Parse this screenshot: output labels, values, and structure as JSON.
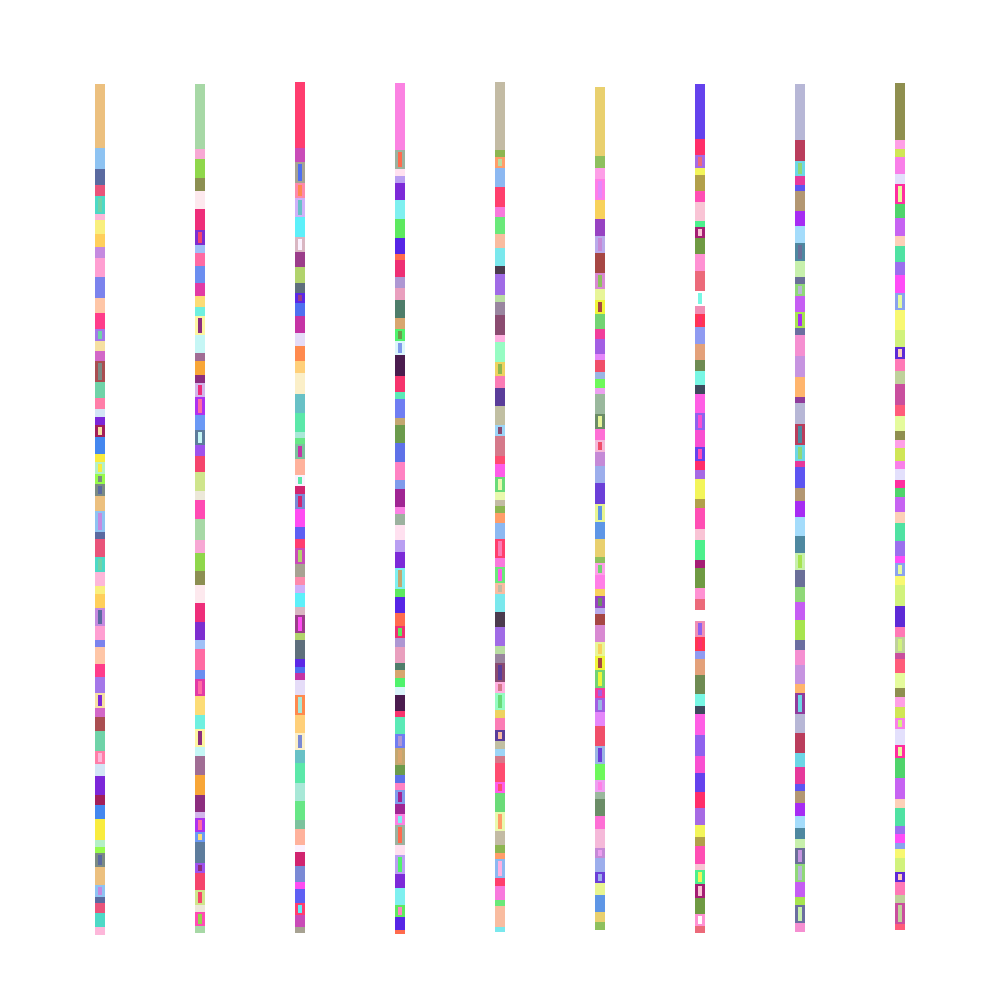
{
  "strips": [
    {
      "palette": [
        "#ecc07f",
        "#8ec3f2",
        "#5a6aa0",
        "#e9547a",
        "#4dd9c6",
        "#fdb7da",
        "#f9ef7e",
        "#ffcf5b",
        "#c58ae0",
        "#ff9fd2",
        "#7b83ed",
        "#fec6a7",
        "#ff3d8a",
        "#a477e9",
        "#f6e0a2",
        "#d267c8",
        "#aa4e51",
        "#6fd3a8",
        "#ff7ea8",
        "#d3e5f5",
        "#7c27d9",
        "#a21f59",
        "#4487ef",
        "#f9ec3e",
        "#b4f0c6",
        "#97fb4c",
        "#7b8b84"
      ]
    },
    {
      "palette": [
        "#a7d8a6",
        "#f7a8d4",
        "#8fd74b",
        "#8c8f52",
        "#fde9ee",
        "#ee2e7a",
        "#7d2ed0",
        "#a0c0f7",
        "#ff6ba3",
        "#6b8ef0",
        "#e13ba6",
        "#fcdc76",
        "#6ff0e0",
        "#fdf5a0",
        "#c5f6f5",
        "#a06d94",
        "#f8a637",
        "#8c2d7e",
        "#d2b5ea",
        "#ad31f0",
        "#6a99f5",
        "#5d7c9c",
        "#9e52ec",
        "#f5456c",
        "#cfe58c",
        "#ece8d9",
        "#ff4ab3"
      ]
    },
    {
      "palette": [
        "#ff3d6f",
        "#c94bb8",
        "#a7a292",
        "#fd8aac",
        "#ceb1f9",
        "#5cf0fa",
        "#d9b6c2",
        "#9b3d8a",
        "#b1d36c",
        "#5e6f7c",
        "#5b28e6",
        "#4e6ff0",
        "#c533a5",
        "#e5dcf8",
        "#ff8a4e",
        "#ffd07a",
        "#fbefc8",
        "#68c1c6",
        "#5be8a9",
        "#a8e8d7",
        "#67e786",
        "#7cc29d",
        "#ffb29c",
        "#fbf1fe",
        "#d1246f",
        "#7a89d5",
        "#ff4cf2",
        "#5e5ff3"
      ]
    },
    {
      "palette": [
        "#fb82e2",
        "#9cb29f",
        "#ffe1f0",
        "#b99ff2",
        "#7c2ad8",
        "#7ef0f0",
        "#5de95f",
        "#5625e6",
        "#ff6b4e",
        "#ee2f74",
        "#ae97d3",
        "#e99fbe",
        "#4e7d6a",
        "#d8a66e",
        "#4ff36c",
        "#dbf5fb",
        "#4a1c4e",
        "#f6346d",
        "#5aeab6",
        "#6f7df2",
        "#c3a770",
        "#6b9b4c",
        "#5e71e8",
        "#ff82c3",
        "#7f9beb",
        "#a02593"
      ]
    },
    {
      "palette": [
        "#c3bba4",
        "#8db651",
        "#ff9d69",
        "#8cb8f1",
        "#ff3f6d",
        "#f879dd",
        "#6ae97a",
        "#f9bca0",
        "#7ae8ed",
        "#4b3b4e",
        "#a06be6",
        "#b9dda2",
        "#99859f",
        "#8a4b70",
        "#ffb0e0",
        "#96fcc3",
        "#eed260",
        "#fb7cb5",
        "#5a3d9a",
        "#c1bfa2",
        "#9cd5f7",
        "#d5798a",
        "#ff4c70",
        "#fe5ce9",
        "#6adb78",
        "#e9f9ad"
      ]
    },
    {
      "palette": [
        "#e9d06f",
        "#8ec05e",
        "#fd9ee7",
        "#ff7ee7",
        "#f8d25c",
        "#9742c2",
        "#b9aaea",
        "#a64744",
        "#d889d2",
        "#e8f598",
        "#eff53a",
        "#72d372",
        "#f13d9b",
        "#a25ee3",
        "#e586fa",
        "#f04e69",
        "#9ab5e4",
        "#6ef85b",
        "#ec9ff0",
        "#9ab89d",
        "#6b8d67",
        "#fe6fd5",
        "#f5b9d9",
        "#c58ad7",
        "#9caeec",
        "#6b3fd8",
        "#e8f591",
        "#5e96e6"
      ]
    },
    {
      "palette": [
        "#6442ed",
        "#ff2e69",
        "#a66ae4",
        "#f3f55a",
        "#b2a04a",
        "#ff4eb4",
        "#f9c4d5",
        "#4df08c",
        "#a41e74",
        "#6f9a43",
        "#ff91d3",
        "#ec6a7a",
        "#ffffff",
        "#f08fb5",
        "#ff3652",
        "#8f9bf1",
        "#e3a17a",
        "#6f8b53",
        "#78f7e4",
        "#3e4a5d",
        "#ff5ee5",
        "#8f62ee",
        "#f94fd1"
      ]
    },
    {
      "palette": [
        "#b7b7d6",
        "#ba3d5c",
        "#6cd6e6",
        "#e6399b",
        "#5d55f1",
        "#b39772",
        "#a72cf3",
        "#a4dcfb",
        "#4e88a0",
        "#c7f0ac",
        "#6a6f98",
        "#8fd878",
        "#c55df3",
        "#a7e44f",
        "#6b6ea0",
        "#f58fd1",
        "#c694e0",
        "#ffb56d",
        "#8f3c9c"
      ]
    },
    {
      "palette": [
        "#8f8f4f",
        "#ff9fe6",
        "#d0e656",
        "#f97fe9",
        "#e3e0fc",
        "#ff2ea0",
        "#4fd46b",
        "#c663f2",
        "#fdd0b8",
        "#4fe2a2",
        "#9b6fee",
        "#ff4cf7",
        "#8aa2ee",
        "#f8f871",
        "#d1f27c",
        "#5d2ad6",
        "#ff79b6",
        "#bfd19b",
        "#c94f9e",
        "#ff5c7a",
        "#e5fb9c"
      ]
    }
  ]
}
